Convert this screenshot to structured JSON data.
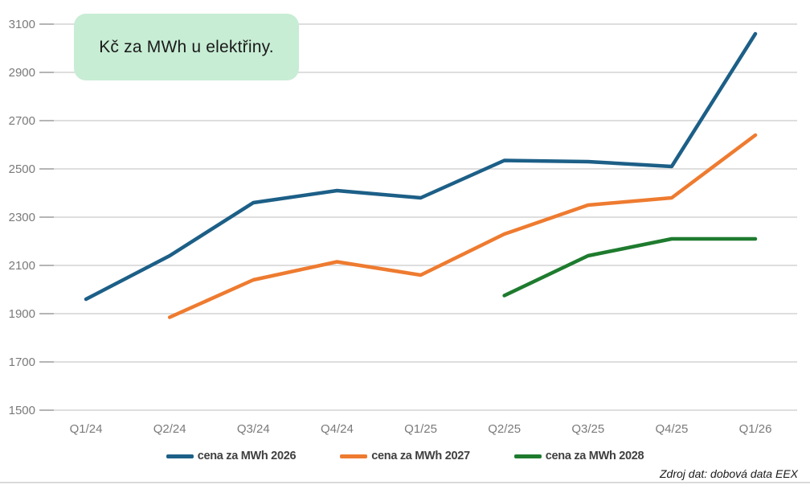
{
  "source": "Zdroj dat: dobová data EEX",
  "colors": {
    "title_bg": "#c7edd4",
    "title_text": "#1a1a1a",
    "grid": "#d9d9d9",
    "tick": "#b5b5b5",
    "axis_text": "#7a7a7a",
    "legend_text": "#404040",
    "source_text": "#1a1a1a",
    "rule": "#d9d9d9"
  },
  "chart_data": {
    "type": "line",
    "title": "Kč za MWh u elektřiny.",
    "xlabel": "",
    "ylabel": "",
    "ylim": [
      1500,
      3100
    ],
    "ytick_step": 200,
    "yticks": [
      1500,
      1700,
      1900,
      2100,
      2300,
      2500,
      2700,
      2900,
      3100
    ],
    "grid": true,
    "legend_position": "bottom",
    "categories": [
      "Q1/24",
      "Q2/24",
      "Q3/24",
      "Q4/24",
      "Q1/25",
      "Q2/25",
      "Q3/25",
      "Q4/25",
      "Q1/26"
    ],
    "series": [
      {
        "name": "cena za MWh 2026",
        "color": "#1c5f87",
        "values": [
          1960,
          2140,
          2360,
          2410,
          2380,
          2535,
          2530,
          2510,
          3060
        ]
      },
      {
        "name": "cena za MWh 2027",
        "color": "#ee7b30",
        "values": [
          null,
          1885,
          2040,
          2115,
          2060,
          2230,
          2350,
          2380,
          2640
        ]
      },
      {
        "name": "cena za MWh 2028",
        "color": "#1e7b2e",
        "values": [
          null,
          null,
          null,
          null,
          null,
          1975,
          2140,
          2210,
          2210
        ]
      }
    ]
  }
}
